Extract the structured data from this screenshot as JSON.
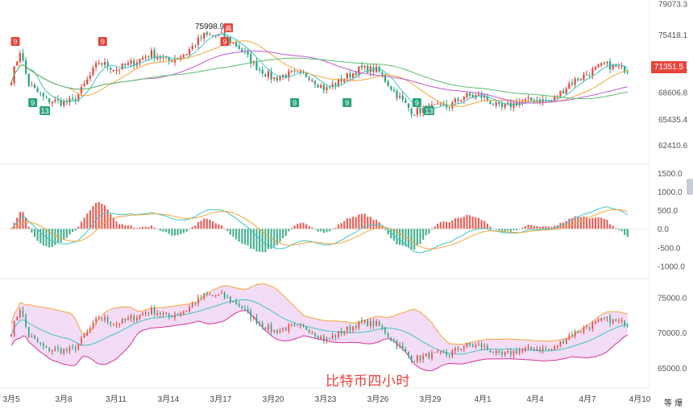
{
  "watermark": "比特币四小时",
  "corner_icons": "等 爆",
  "colors": {
    "up": "#e8443c",
    "down": "#2aa37e",
    "ma_fast": "#3cc6c3",
    "ma_mid": "#f4a53a",
    "ma_slow": "#c05ad2",
    "ma_long": "#5cbd6a",
    "boll_fill": "#f3dcf5",
    "boll_upper": "#f4a53a",
    "boll_lower": "#d6339a",
    "boll_mid": "#3cc6c3",
    "macd_dif": "#3cc6c3",
    "macd_dea": "#f4a53a"
  },
  "chart_data": [
    {
      "type": "candlestick",
      "panel": "price",
      "y_ticks": [
        "79073.3",
        "75418.1",
        "71351.5",
        "68606.8",
        "65435.4",
        "62410.6"
      ],
      "ylim": [
        60500,
        79300
      ],
      "last_price": "71351.5",
      "annotations": {
        "high": "75998.9",
        "high_marker": "高",
        "sequential": [
          {
            "label": "9",
            "date": "3月5",
            "side": "top"
          },
          {
            "label": "9",
            "date": "3月6",
            "side": "bottom"
          },
          {
            "label": "13",
            "date": "3月6",
            "side": "bottom"
          },
          {
            "label": "9",
            "date": "3月10",
            "side": "top"
          },
          {
            "label": "9",
            "date": "3月17",
            "side": "top"
          },
          {
            "label": "9",
            "date": "3月21",
            "side": "bottom"
          },
          {
            "label": "9",
            "date": "3月24",
            "side": "bottom"
          },
          {
            "label": "9",
            "date": "3月28",
            "side": "bottom"
          },
          {
            "label": "13",
            "date": "3月28",
            "side": "bottom"
          }
        ]
      },
      "anchors": [
        [
          "3月5",
          70200
        ],
        [
          "3月5",
          73500
        ],
        [
          "3月6",
          69500
        ],
        [
          "3月7",
          67700
        ],
        [
          "3月8",
          67400
        ],
        [
          "3月8",
          67500
        ],
        [
          "3月9",
          68800
        ],
        [
          "3月10",
          72200
        ],
        [
          "3月11",
          71300
        ],
        [
          "3月12",
          72100
        ],
        [
          "3月13",
          73200
        ],
        [
          "3月14",
          72300
        ],
        [
          "3月15",
          73200
        ],
        [
          "3月16",
          75300
        ],
        [
          "3月17",
          75300
        ],
        [
          "3月18",
          74000
        ],
        [
          "3月19",
          71700
        ],
        [
          "3月20",
          70200
        ],
        [
          "3月21",
          70800
        ],
        [
          "3月22",
          70600
        ],
        [
          "3月23",
          68900
        ],
        [
          "3月24",
          70200
        ],
        [
          "3月25",
          71400
        ],
        [
          "3月26",
          71200
        ],
        [
          "3月27",
          68500
        ],
        [
          "3月28",
          66200
        ],
        [
          "3月29",
          66800
        ],
        [
          "3月30",
          66900
        ],
        [
          "3月31",
          68200
        ],
        [
          "4月1",
          68100
        ],
        [
          "4月2",
          66700
        ],
        [
          "4月3",
          67400
        ],
        [
          "4月4",
          67700
        ],
        [
          "4月5",
          67600
        ],
        [
          "4月6",
          69700
        ],
        [
          "4月7",
          70800
        ],
        [
          "4月8",
          71900
        ],
        [
          "4月9",
          71351.5
        ]
      ]
    },
    {
      "type": "bar",
      "panel": "macd",
      "y_ticks": [
        "1500.0",
        "1000.0",
        "500.0",
        "0.0",
        "-500.0",
        "-1000.0"
      ],
      "ylim": [
        -1250,
        1650
      ],
      "series": [
        {
          "name": "",
          "role": "histogram"
        },
        {
          "name": "",
          "role": "dif"
        },
        {
          "name": "",
          "role": "dea"
        }
      ]
    },
    {
      "type": "candlestick",
      "panel": "bollinger",
      "y_ticks": [
        "75000.0",
        "70000.0",
        "65000.0"
      ],
      "ylim": [
        63500,
        77000
      ]
    }
  ],
  "x_axis": {
    "labels": [
      "3月5",
      "3月8",
      "3月11",
      "3月14",
      "3月17",
      "3月20",
      "3月23",
      "3月26",
      "3月29",
      "4月1",
      "4月4",
      "4月7",
      "4月10"
    ]
  }
}
